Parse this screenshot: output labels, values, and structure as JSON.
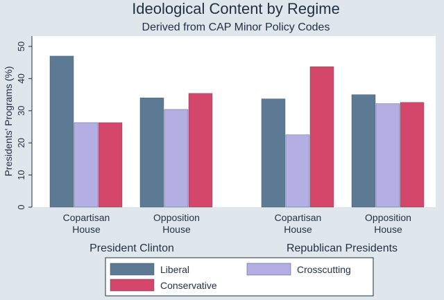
{
  "chart_data": {
    "type": "bar",
    "title": "Ideological Content by Regime",
    "subtitle": "Derived from CAP Minor Policy Codes",
    "ylabel": "Presidents' Programs (%)",
    "xlabel": "",
    "ylim": [
      0,
      50
    ],
    "yticks": [
      0,
      10,
      20,
      30,
      40,
      50
    ],
    "grid": false,
    "legend_position": "bottom",
    "groups": [
      {
        "label": "President Clinton",
        "categories": [
          {
            "label_lines": [
              "Copartisan",
              "House"
            ],
            "values": [
              47,
              26.3,
              26.3
            ]
          },
          {
            "label_lines": [
              "Opposition",
              "House"
            ],
            "values": [
              34,
              30.4,
              35.4
            ]
          }
        ]
      },
      {
        "label": "Republican Presidents",
        "categories": [
          {
            "label_lines": [
              "Copartisan",
              "House"
            ],
            "values": [
              33.7,
              22.5,
              43.7
            ]
          },
          {
            "label_lines": [
              "Opposition",
              "House"
            ],
            "values": [
              35,
              32.2,
              32.6
            ]
          }
        ]
      }
    ],
    "series": [
      {
        "name": "Liberal",
        "color": "#5d7a95"
      },
      {
        "name": "Crosscutting",
        "color": "#b3aee4"
      },
      {
        "name": "Conservative",
        "color": "#d4476b"
      }
    ]
  }
}
